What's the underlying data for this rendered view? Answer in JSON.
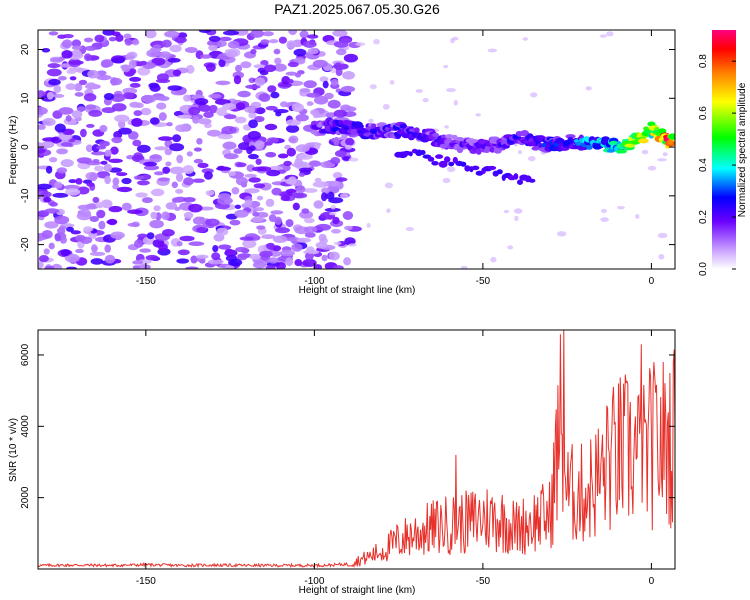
{
  "chart_data": [
    {
      "type": "heatmap",
      "title": "PAZ1.2025.067.05.30.G26",
      "xlabel": "Height of straight line (km)",
      "ylabel": "Frequency (Hz)",
      "xlim": [
        -182,
        7
      ],
      "ylim": [
        -25,
        24
      ],
      "x_ticks": [
        -150,
        -100,
        -50,
        0
      ],
      "y_ticks": [
        -20,
        -10,
        0,
        10,
        20
      ],
      "colorbar": {
        "label": "Normalized spectral amplitude",
        "range": [
          0,
          0.92
        ],
        "ticks": [
          0,
          0.2,
          0.4,
          0.6,
          0.8
        ]
      },
      "signal_track": [
        {
          "x": -100,
          "freq": 4.0,
          "amp": 0.2
        },
        {
          "x": -95,
          "freq": 4.0,
          "amp": 0.28
        },
        {
          "x": -90,
          "freq": 4.0,
          "amp": 0.3
        },
        {
          "x": -85,
          "freq": 3.0,
          "amp": 0.3
        },
        {
          "x": -80,
          "freq": 3.5,
          "amp": 0.25
        },
        {
          "x": -75,
          "freq": 3.5,
          "amp": 0.28
        },
        {
          "x": -70,
          "freq": 3.0,
          "amp": 0.26
        },
        {
          "x": -65,
          "freq": 2.0,
          "amp": 0.25
        },
        {
          "x": -60,
          "freq": 1.0,
          "amp": 0.22
        },
        {
          "x": -55,
          "freq": 0.5,
          "amp": 0.22
        },
        {
          "x": -50,
          "freq": 0.0,
          "amp": 0.22
        },
        {
          "x": -45,
          "freq": 0.5,
          "amp": 0.24
        },
        {
          "x": -40,
          "freq": 2.5,
          "amp": 0.28
        },
        {
          "x": -35,
          "freq": 1.0,
          "amp": 0.3
        },
        {
          "x": -30,
          "freq": 0.5,
          "amp": 0.32
        },
        {
          "x": -25,
          "freq": 1.0,
          "amp": 0.32
        },
        {
          "x": -20,
          "freq": 1.0,
          "amp": 0.4
        },
        {
          "x": -15,
          "freq": 0.5,
          "amp": 0.45
        },
        {
          "x": -10,
          "freq": 0.0,
          "amp": 0.55
        },
        {
          "x": -5,
          "freq": 1.0,
          "amp": 0.65
        },
        {
          "x": 0,
          "freq": 3.5,
          "amp": 0.75
        },
        {
          "x": 5,
          "freq": 1.5,
          "amp": 0.92
        }
      ]
    },
    {
      "type": "line",
      "xlabel": "Height of straight line (km)",
      "ylabel": "SNR (10 * v/v)",
      "xlim": [
        -182,
        7
      ],
      "ylim": [
        0,
        6700
      ],
      "x_ticks": [
        -150,
        -100,
        -50,
        0
      ],
      "y_ticks": [
        2000,
        4000,
        6000
      ],
      "line_color": "#e8302a",
      "series": [
        {
          "x": [
            -182,
            -170,
            -160,
            -150,
            -140,
            -130,
            -120,
            -110,
            -100,
            -95,
            -90,
            -85,
            -80,
            -75,
            -70,
            -65,
            -60,
            -55,
            -50,
            -45,
            -40,
            -35,
            -30,
            -27,
            -25,
            -20,
            -15,
            -10,
            -5,
            -3,
            0,
            5,
            7
          ],
          "values": [
            100,
            110,
            100,
            120,
            100,
            110,
            100,
            100,
            100,
            110,
            140,
            300,
            500,
            800,
            1000,
            1150,
            1250,
            1300,
            1450,
            1400,
            1150,
            1350,
            1500,
            4100,
            2100,
            2100,
            2600,
            3250,
            3300,
            3000,
            3450,
            3600,
            3700
          ]
        }
      ],
      "peaks": [
        {
          "x": -26,
          "y": 6700
        },
        {
          "x": -3,
          "y": 6300
        },
        {
          "x": -13,
          "y": 4500
        },
        {
          "x": -58,
          "y": 3200
        }
      ]
    }
  ]
}
